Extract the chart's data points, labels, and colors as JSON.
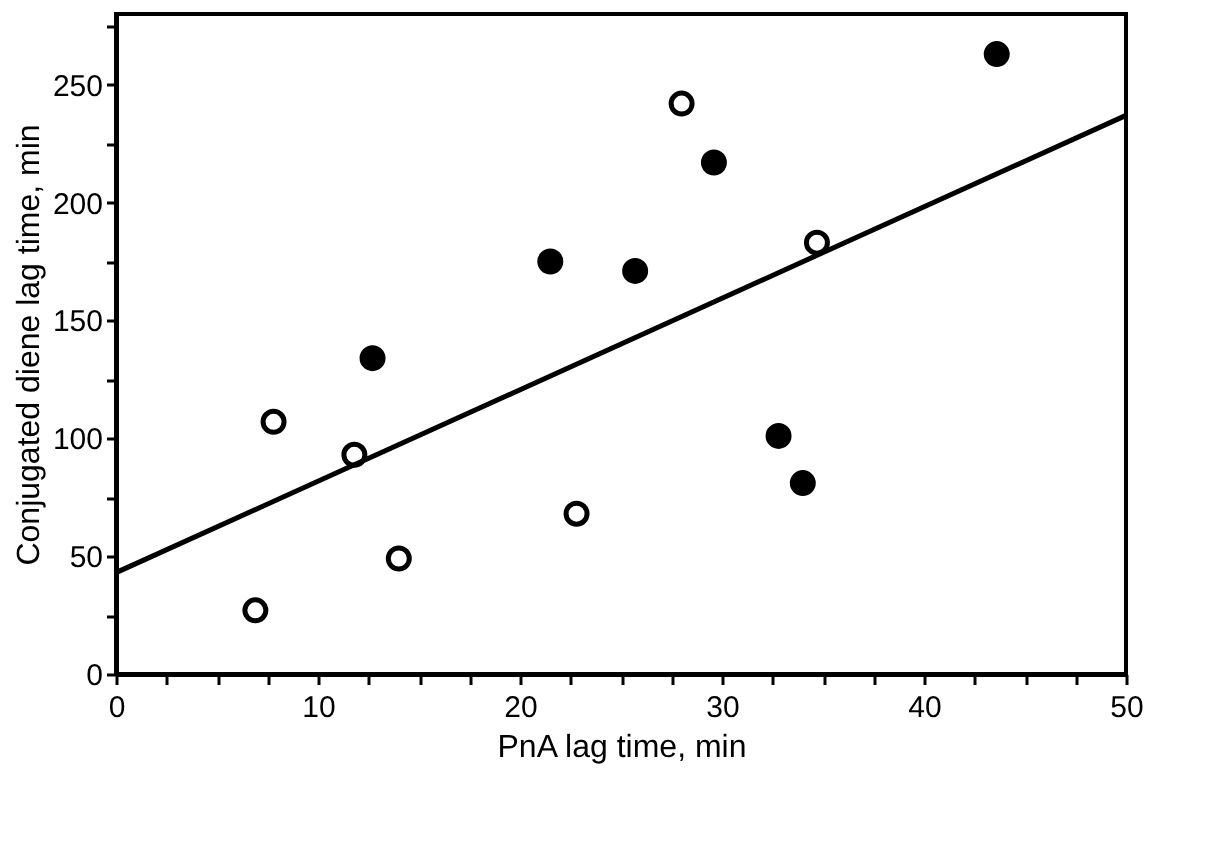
{
  "chart_data": {
    "type": "scatter",
    "xlabel": "PnA lag time, min",
    "ylabel": "Conjugated diene lag time, min",
    "xlim": [
      0,
      50
    ],
    "ylim": [
      0,
      280
    ],
    "xticks": [
      0,
      {
        "value": 2.5,
        "label": null
      },
      {
        "value": 5,
        "label": null
      },
      {
        "value": 7.5,
        "label": null
      },
      10,
      {
        "value": 12.5,
        "label": null
      },
      {
        "value": 15,
        "label": null
      },
      {
        "value": 17.5,
        "label": null
      },
      20,
      {
        "value": 22.5,
        "label": null
      },
      {
        "value": 25,
        "label": null
      },
      {
        "value": 27.5,
        "label": null
      },
      30,
      {
        "value": 32.5,
        "label": null
      },
      {
        "value": 35,
        "label": null
      },
      {
        "value": 37.5,
        "label": null
      },
      40,
      {
        "value": 42.5,
        "label": null
      },
      {
        "value": 45,
        "label": null
      },
      {
        "value": 47.5,
        "label": null
      },
      50
    ],
    "yticks": [
      0,
      {
        "value": 25,
        "label": null
      },
      50,
      {
        "value": 75,
        "label": null
      },
      100,
      {
        "value": 125,
        "label": null
      },
      150,
      {
        "value": 175,
        "label": null
      },
      200,
      {
        "value": 225,
        "label": null
      },
      250,
      {
        "value": 275,
        "label": null
      }
    ],
    "grid": false,
    "series": [
      {
        "marker": "circle",
        "color": "#ffffff",
        "x": [
          6.9,
          7.8,
          11.8,
          14.0,
          22.8,
          28.0,
          34.7
        ],
        "values": [
          27,
          107,
          93,
          49,
          68,
          242,
          183
        ]
      },
      {
        "marker": "circle",
        "color": "#000000",
        "x": [
          12.7,
          21.5,
          25.7,
          29.6,
          32.8,
          34.0,
          43.6
        ],
        "values": [
          134,
          175,
          171,
          217,
          101,
          81,
          263
        ]
      },
      {
        "type": "line",
        "line_style": "solid",
        "color": "#000000",
        "x": [
          0,
          50
        ],
        "values": [
          43,
          237
        ]
      }
    ]
  }
}
